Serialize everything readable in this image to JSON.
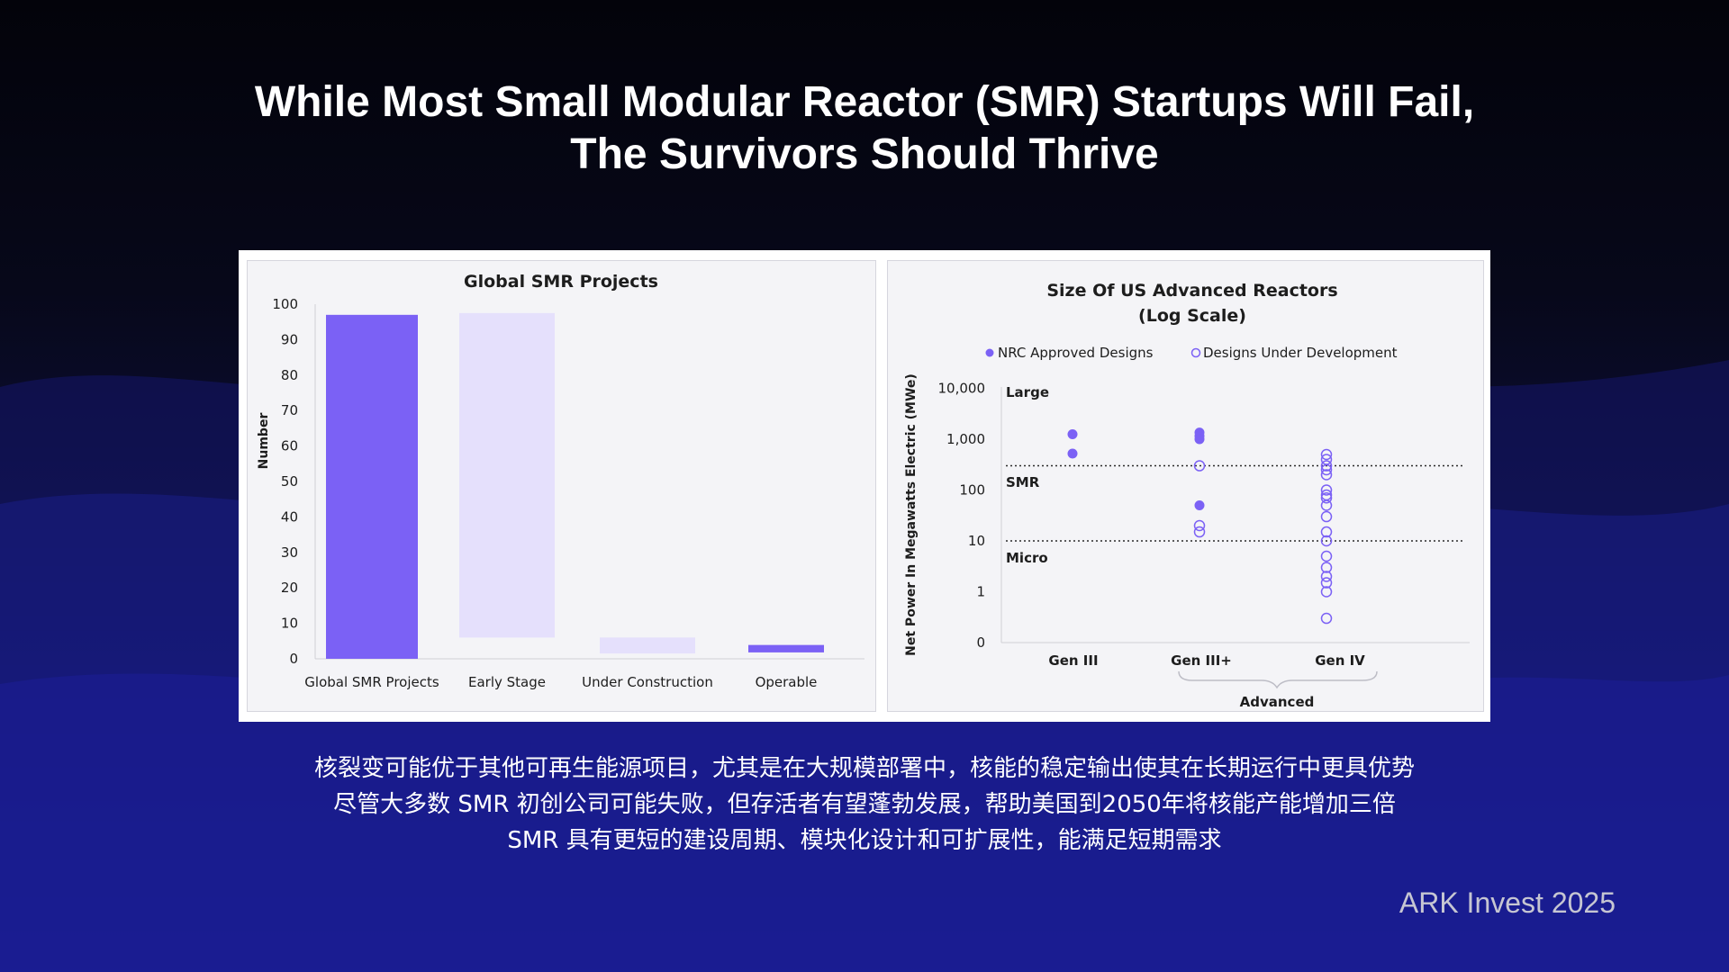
{
  "slide": {
    "title_line1": "While Most Small Modular Reactor (SMR) Startups Will Fail,",
    "title_line2": "The Survivors Should Thrive",
    "bullets": [
      "核裂变可能优于其他可再生能源项目，尤其是在大规模部署中，核能的稳定输出使其在长期运行中更具优势",
      "尽管大多数 SMR 初创公司可能失败，但存活者有望蓬勃发展，帮助美国到2050年将核能产能增加三倍",
      "SMR 具有更短的建设周期、模块化设计和可扩展性，能满足短期需求"
    ],
    "source": "ARK Invest 2025"
  },
  "colors": {
    "primary_bar": "#7b61f5",
    "light_bar": "#e5e0fc",
    "marker": "#7b61f5",
    "background_dark": "#05050d",
    "background_blue": "#1a1ea8"
  },
  "chart_data": [
    {
      "type": "bar",
      "chart_style": "waterfall",
      "title": "Global SMR Projects",
      "ylabel": "Number",
      "xlabel": "",
      "ylim": [
        0,
        100
      ],
      "yticks": [
        0,
        10,
        20,
        30,
        40,
        50,
        60,
        70,
        80,
        90,
        100
      ],
      "categories": [
        "Global SMR Projects",
        "Early Stage",
        "Under Construction",
        "Operable"
      ],
      "segments": [
        {
          "category": "Global SMR Projects",
          "base": 0,
          "top": 97,
          "style": "total"
        },
        {
          "category": "Early Stage",
          "base": 6,
          "top": 97.5,
          "style": "step"
        },
        {
          "category": "Under Construction",
          "base": 1.5,
          "top": 6,
          "style": "step"
        },
        {
          "category": "Operable",
          "base": 1.8,
          "top": 3.9,
          "style": "total"
        }
      ]
    },
    {
      "type": "scatter",
      "title": "Size Of US Advanced Reactors",
      "subtitle": "(Log Scale)",
      "ylabel": "Net Power In Megawatts Electric (MWe)",
      "yscale": "log",
      "ytick_labels": [
        "0",
        "1",
        "10",
        "100",
        "1,000",
        "10,000"
      ],
      "ytick_values": [
        0.1,
        1,
        10,
        100,
        1000,
        10000
      ],
      "categories": [
        "Gen III",
        "Gen III+",
        "Gen IV"
      ],
      "group_label": "Advanced",
      "group_spans": [
        "Gen III+",
        "Gen IV"
      ],
      "legend": [
        "NRC Approved Designs",
        "Designs Under Development"
      ],
      "legend_position": "top",
      "regions": [
        {
          "label": "Large",
          "threshold": 300
        },
        {
          "label": "SMR",
          "threshold": 10
        },
        {
          "label": "Micro",
          "threshold": 0.1
        }
      ],
      "series": [
        {
          "name": "NRC Approved Designs",
          "filled": true,
          "points": [
            {
              "x": "Gen III",
              "y": 1250
            },
            {
              "x": "Gen III",
              "y": 520
            },
            {
              "x": "Gen III+",
              "y": 1350
            },
            {
              "x": "Gen III+",
              "y": 1150
            },
            {
              "x": "Gen III+",
              "y": 1000
            },
            {
              "x": "Gen III+",
              "y": 50
            }
          ]
        },
        {
          "name": "Designs Under Development",
          "filled": false,
          "points": [
            {
              "x": "Gen III+",
              "y": 300
            },
            {
              "x": "Gen III+",
              "y": 20
            },
            {
              "x": "Gen III+",
              "y": 15
            },
            {
              "x": "Gen IV",
              "y": 500
            },
            {
              "x": "Gen IV",
              "y": 400
            },
            {
              "x": "Gen IV",
              "y": 300
            },
            {
              "x": "Gen IV",
              "y": 250
            },
            {
              "x": "Gen IV",
              "y": 200
            },
            {
              "x": "Gen IV",
              "y": 100
            },
            {
              "x": "Gen IV",
              "y": 80
            },
            {
              "x": "Gen IV",
              "y": 70
            },
            {
              "x": "Gen IV",
              "y": 50
            },
            {
              "x": "Gen IV",
              "y": 30
            },
            {
              "x": "Gen IV",
              "y": 15
            },
            {
              "x": "Gen IV",
              "y": 10
            },
            {
              "x": "Gen IV",
              "y": 5
            },
            {
              "x": "Gen IV",
              "y": 3
            },
            {
              "x": "Gen IV",
              "y": 2
            },
            {
              "x": "Gen IV",
              "y": 1.5
            },
            {
              "x": "Gen IV",
              "y": 1
            },
            {
              "x": "Gen IV",
              "y": 0.3
            }
          ]
        }
      ]
    }
  ]
}
